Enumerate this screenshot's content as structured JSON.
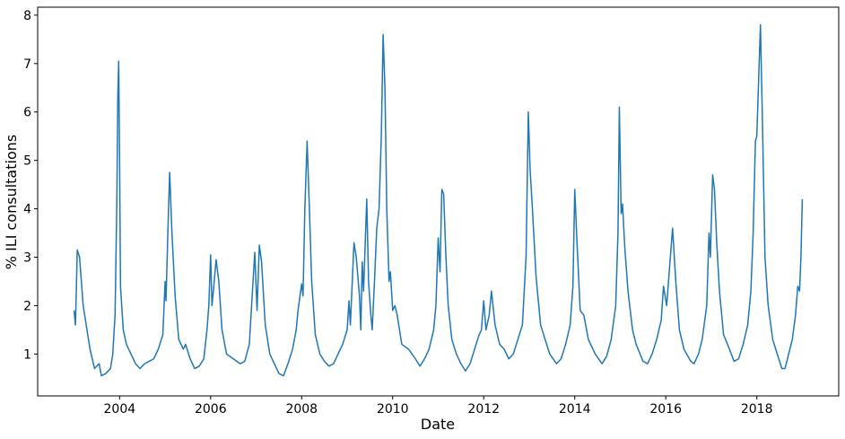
{
  "chart_data": {
    "type": "line",
    "xlabel": "Date",
    "ylabel": "% ILI consultations",
    "xlim": [
      2002.2,
      2019.8
    ],
    "ylim": [
      0.135,
      8.165
    ],
    "xticks": [
      2004,
      2006,
      2008,
      2010,
      2012,
      2014,
      2016,
      2018
    ],
    "yticks": [
      1,
      2,
      3,
      4,
      5,
      6,
      7,
      8
    ],
    "series": [
      {
        "name": "ILI",
        "color": "#1f77b4",
        "x": [
          2003.0,
          2003.03,
          2003.07,
          2003.12,
          2003.2,
          2003.35,
          2003.45,
          2003.55,
          2003.6,
          2003.7,
          2003.8,
          2003.85,
          2003.9,
          2003.94,
          2003.96,
          2003.98,
          2004.0,
          2004.02,
          2004.08,
          2004.15,
          2004.25,
          2004.35,
          2004.45,
          2004.55,
          2004.65,
          2004.75,
          2004.85,
          2004.95,
          2005.0,
          2005.02,
          2005.06,
          2005.1,
          2005.15,
          2005.22,
          2005.3,
          2005.4,
          2005.45,
          2005.55,
          2005.65,
          2005.75,
          2005.85,
          2005.92,
          2005.96,
          2006.0,
          2006.03,
          2006.07,
          2006.12,
          2006.18,
          2006.25,
          2006.35,
          2006.5,
          2006.65,
          2006.75,
          2006.85,
          2006.9,
          2006.97,
          2007.02,
          2007.07,
          2007.12,
          2007.2,
          2007.3,
          2007.4,
          2007.5,
          2007.6,
          2007.7,
          2007.8,
          2007.88,
          2007.92,
          2008.0,
          2008.03,
          2008.07,
          2008.12,
          2008.17,
          2008.22,
          2008.3,
          2008.4,
          2008.5,
          2008.6,
          2008.7,
          2008.8,
          2008.9,
          2009.0,
          2009.04,
          2009.07,
          2009.15,
          2009.2,
          2009.27,
          2009.3,
          2009.33,
          2009.36,
          2009.43,
          2009.47,
          2009.52,
          2009.55,
          2009.6,
          2009.65,
          2009.7,
          2009.75,
          2009.79,
          2009.83,
          2009.87,
          2009.92,
          2009.95,
          2010.0,
          2010.05,
          2010.1,
          2010.2,
          2010.35,
          2010.5,
          2010.6,
          2010.7,
          2010.8,
          2010.9,
          2010.95,
          2011.0,
          2011.04,
          2011.08,
          2011.12,
          2011.17,
          2011.22,
          2011.3,
          2011.4,
          2011.5,
          2011.6,
          2011.7,
          2011.8,
          2011.9,
          2011.95,
          2012.0,
          2012.05,
          2012.12,
          2012.17,
          2012.25,
          2012.35,
          2012.45,
          2012.55,
          2012.65,
          2012.75,
          2012.85,
          2012.93,
          2012.98,
          2013.02,
          2013.07,
          2013.15,
          2013.25,
          2013.35,
          2013.45,
          2013.6,
          2013.7,
          2013.8,
          2013.9,
          2013.96,
          2014.0,
          2014.05,
          2014.12,
          2014.2,
          2014.3,
          2014.45,
          2014.6,
          2014.7,
          2014.8,
          2014.9,
          2014.95,
          2014.98,
          2015.02,
          2015.05,
          2015.1,
          2015.17,
          2015.27,
          2015.35,
          2015.5,
          2015.6,
          2015.7,
          2015.8,
          2015.9,
          2015.95,
          2016.02,
          2016.1,
          2016.15,
          2016.22,
          2016.3,
          2016.4,
          2016.55,
          2016.62,
          2016.72,
          2016.8,
          2016.9,
          2016.95,
          2016.98,
          2017.03,
          2017.07,
          2017.12,
          2017.18,
          2017.27,
          2017.4,
          2017.5,
          2017.6,
          2017.7,
          2017.8,
          2017.87,
          2017.92,
          2017.97,
          2018.0,
          2018.08,
          2018.12,
          2018.18,
          2018.25,
          2018.35,
          2018.45,
          2018.55,
          2018.62,
          2018.7,
          2018.78,
          2018.85,
          2018.9,
          2018.94,
          2018.97,
          2019.0
        ],
        "values": [
          1.9,
          1.6,
          3.15,
          3.0,
          2.0,
          1.1,
          0.7,
          0.8,
          0.55,
          0.6,
          0.7,
          1.0,
          1.8,
          4.2,
          6.3,
          7.05,
          5,
          2.4,
          1.5,
          1.2,
          1.0,
          0.8,
          0.7,
          0.8,
          0.85,
          0.9,
          1.1,
          1.4,
          2.5,
          2.1,
          3.5,
          4.75,
          3.5,
          2.2,
          1.3,
          1.1,
          1.2,
          0.9,
          0.7,
          0.75,
          0.9,
          1.5,
          2.0,
          3.05,
          2.0,
          2.4,
          2.95,
          2.5,
          1.5,
          1.0,
          0.9,
          0.8,
          0.85,
          1.2,
          2.0,
          3.1,
          1.9,
          3.25,
          2.9,
          1.6,
          1.0,
          0.8,
          0.6,
          0.55,
          0.8,
          1.1,
          1.5,
          1.9,
          2.45,
          2.2,
          4.0,
          5.4,
          4.0,
          2.5,
          1.4,
          1.0,
          0.85,
          0.75,
          0.8,
          1.0,
          1.2,
          1.5,
          2.1,
          1.6,
          3.3,
          3.0,
          2.2,
          1.5,
          2.9,
          2.3,
          4.2,
          2.5,
          1.8,
          1.5,
          2.5,
          3.6,
          4.0,
          5.5,
          7.6,
          6.5,
          4.0,
          2.5,
          2.7,
          1.9,
          2.0,
          1.8,
          1.2,
          1.1,
          0.9,
          0.75,
          0.9,
          1.1,
          1.5,
          2.0,
          3.4,
          2.7,
          4.4,
          4.3,
          3.0,
          2.0,
          1.3,
          1.0,
          0.8,
          0.65,
          0.8,
          1.1,
          1.4,
          1.5,
          2.1,
          1.5,
          1.8,
          2.3,
          1.6,
          1.2,
          1.1,
          0.9,
          1.0,
          1.3,
          1.6,
          3.0,
          6.0,
          4.8,
          4.0,
          2.6,
          1.6,
          1.3,
          1.0,
          0.8,
          0.9,
          1.2,
          1.6,
          2.4,
          4.4,
          3.3,
          1.9,
          1.8,
          1.3,
          1.0,
          0.8,
          0.95,
          1.3,
          2.0,
          3.5,
          6.1,
          3.9,
          4.1,
          3.2,
          2.3,
          1.5,
          1.2,
          0.85,
          0.8,
          1.0,
          1.3,
          1.7,
          2.4,
          2.0,
          3.0,
          3.6,
          2.5,
          1.5,
          1.1,
          0.85,
          0.8,
          1.0,
          1.3,
          2.0,
          3.5,
          3.0,
          4.7,
          4.4,
          3.3,
          2.3,
          1.4,
          1.1,
          0.85,
          0.9,
          1.2,
          1.6,
          2.3,
          3.5,
          5.4,
          5.5,
          7.8,
          6.0,
          3.0,
          2.0,
          1.3,
          1.0,
          0.7,
          0.7,
          1.0,
          1.3,
          1.8,
          2.4,
          2.3,
          3.0,
          4.2
        ]
      }
    ]
  }
}
